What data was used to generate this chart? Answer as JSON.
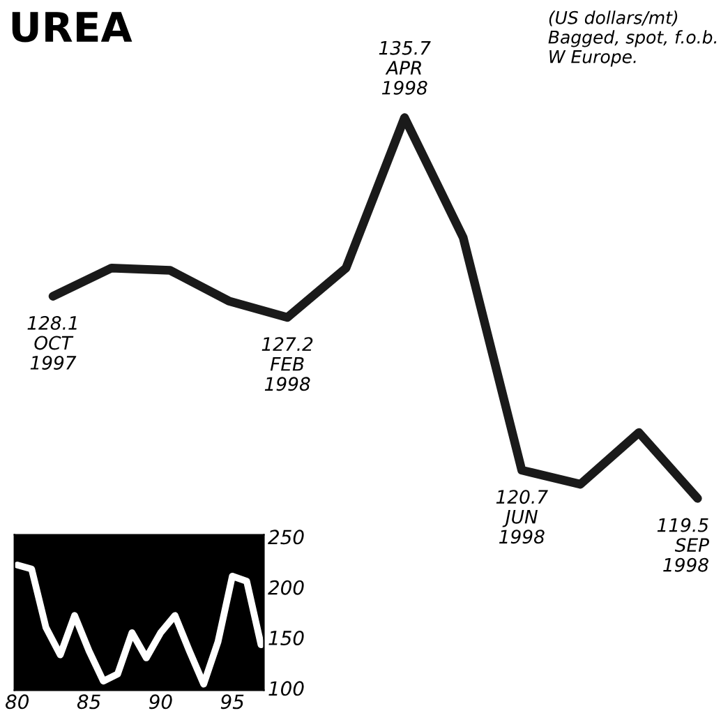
{
  "chart_data": [
    {
      "type": "line",
      "title": "UREA",
      "annotations": [
        "(US dollars/mt)\nBagged, spot, f.o.b.\nW Europe."
      ],
      "categories": [
        null,
        null,
        null,
        null,
        null,
        null,
        null,
        null,
        null,
        null,
        null,
        null
      ],
      "series": [
        {
          "color": "#1a1a1a",
          "values": [
            128.1,
            129.3,
            129.2,
            127.9,
            127.2,
            129.3,
            135.7,
            130.6,
            120.7,
            120.1,
            122.3,
            119.5
          ],
          "value_labels": [
            "128.1\nOCT\n1997",
            null,
            null,
            null,
            "127.2\nFEB\n1998",
            null,
            "135.7\nAPR\n1998",
            null,
            "120.7\nJUN\n1998",
            null,
            null,
            "119.5\nSEP\n1998"
          ]
        }
      ],
      "marker": "none",
      "grid": false,
      "legend": false
    },
    {
      "type": "line",
      "x": [
        80,
        81,
        82,
        83,
        84,
        85,
        86,
        87,
        88,
        89,
        90,
        91,
        92,
        93,
        94,
        95,
        96,
        97
      ],
      "series": [
        {
          "color": "#ffffff",
          "values": [
            222,
            218,
            160,
            133,
            172,
            137,
            107,
            114,
            155,
            130,
            155,
            172,
            137,
            104,
            146,
            211,
            206,
            143
          ]
        }
      ],
      "xlim": [
        79.8,
        97.2
      ],
      "ylim": [
        98,
        252
      ],
      "xticks": [
        80,
        85,
        90,
        95
      ],
      "yticks": [
        100,
        150,
        200,
        250
      ],
      "marker": "none",
      "grid": false,
      "legend": false
    }
  ]
}
